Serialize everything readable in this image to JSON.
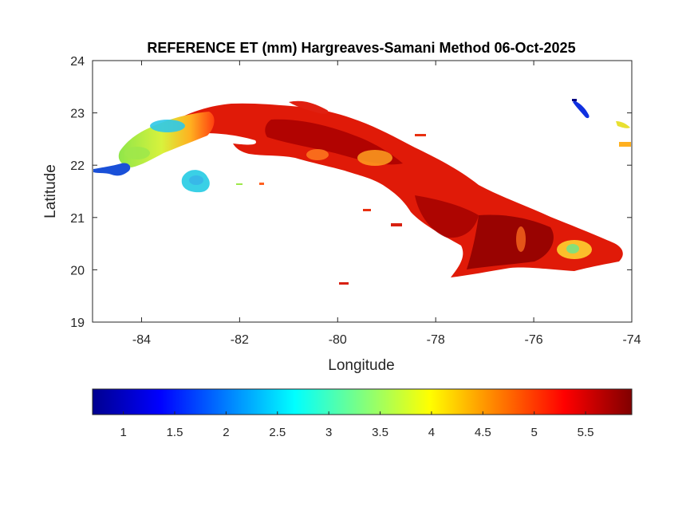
{
  "chart_data": {
    "type": "heatmap",
    "title": "REFERENCE ET (mm) Hargreaves-Samani Method  06-Oct-2025",
    "xlabel": "Longitude",
    "ylabel": "Latitude",
    "xlim": [
      -85,
      -74
    ],
    "ylim": [
      19,
      24
    ],
    "x_ticks": [
      "-84",
      "-82",
      "-80",
      "-78",
      "-76",
      "-74"
    ],
    "y_ticks": [
      "19",
      "20",
      "21",
      "22",
      "23",
      "24"
    ],
    "grid": false,
    "colormap": "jet",
    "colorbar": {
      "orientation": "horizontal",
      "placement": "below",
      "range": [
        0.7,
        5.95
      ],
      "ticks": [
        "1",
        "1.5",
        "2",
        "2.5",
        "3",
        "3.5",
        "4",
        "4.5",
        "5",
        "5.5"
      ]
    },
    "regions": [
      {
        "name": "western tip",
        "lon_range": [
          -85,
          -83.2
        ],
        "approx_value": 3.5
      },
      {
        "name": "Isla de la Juventud",
        "lon_range": [
          -83.2,
          -82.6
        ],
        "approx_value": 2.6
      },
      {
        "name": "central island",
        "lon_range": [
          -82.5,
          -77.5
        ],
        "approx_value": 5.4
      },
      {
        "name": "eastern island",
        "lon_range": [
          -77.5,
          -74.2
        ],
        "approx_value": 5.5
      },
      {
        "name": "coastal water / lakes",
        "approx_value": 1.2
      }
    ]
  }
}
